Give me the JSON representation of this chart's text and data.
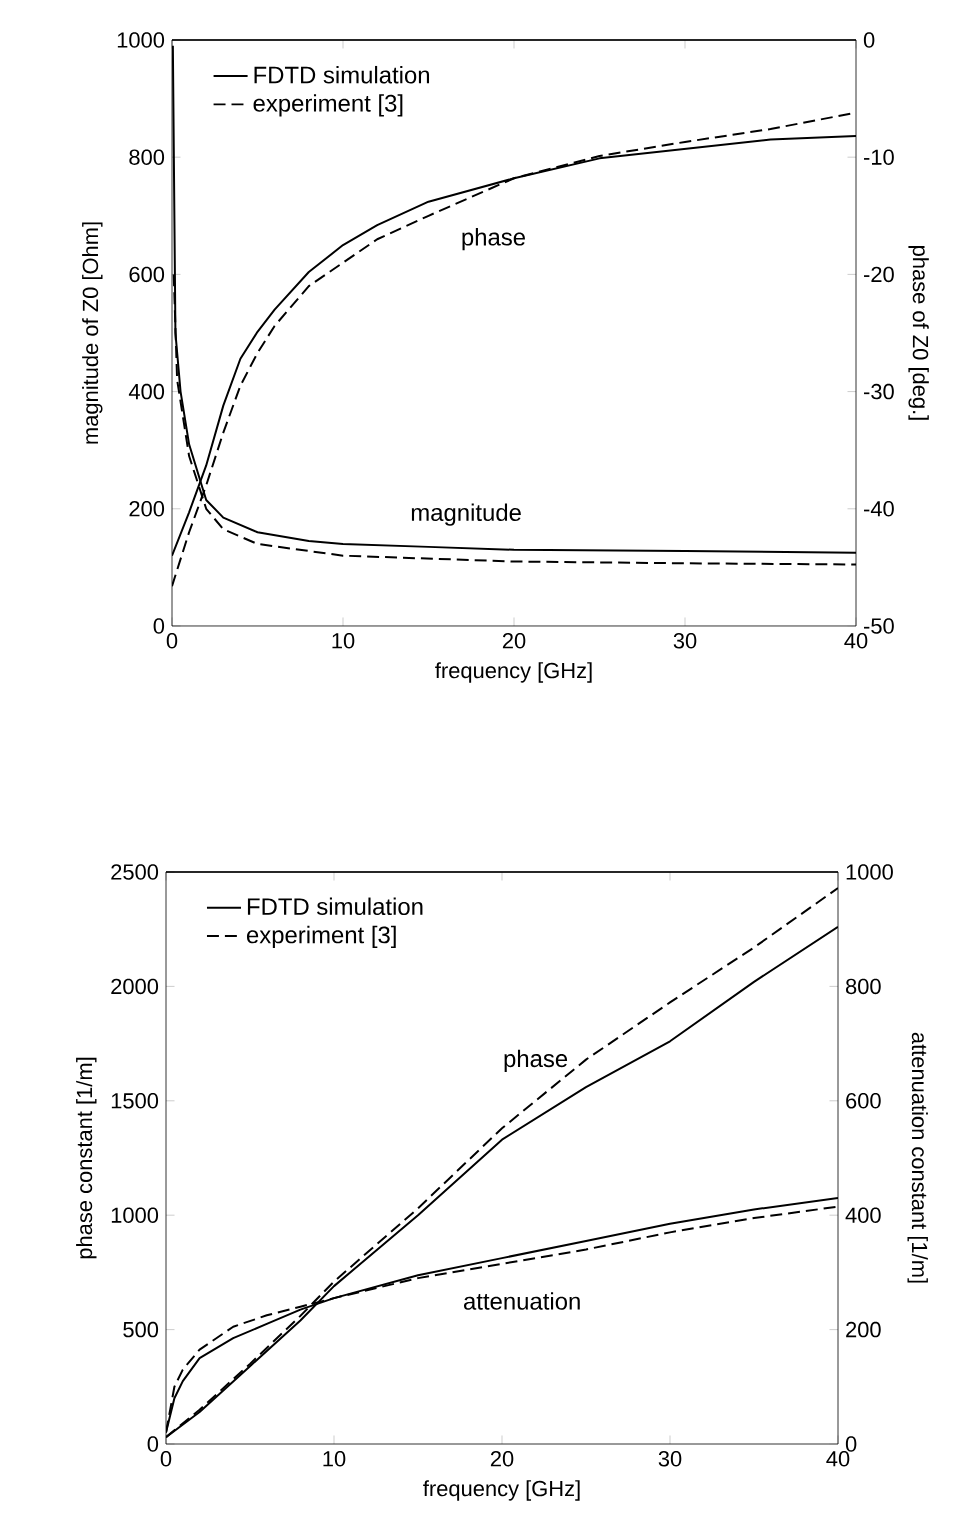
{
  "chart_data": [
    {
      "type": "line",
      "xlabel": "frequency [GHz]",
      "ylabel": "magnitude of Z0 [Ohm]",
      "y2label": "phase of  Z0 [deg.]",
      "xlim": [
        0,
        40
      ],
      "ylim": [
        0,
        1000
      ],
      "y2lim": [
        -50,
        0
      ],
      "xticks": [
        0,
        10,
        20,
        30,
        40
      ],
      "yticks": [
        0,
        200,
        400,
        600,
        800,
        1000
      ],
      "y2ticks": [
        -50,
        -40,
        -30,
        -20,
        -10,
        0
      ],
      "legend": "top left",
      "grid": false,
      "series": [
        {
          "name": "FDTD simulation",
          "color": "#000000",
          "line_style": "solid",
          "x": [
            0.05,
            0.2,
            0.5,
            1,
            2,
            3,
            5,
            8,
            10,
            15,
            20,
            30,
            40
          ],
          "values": [
            990,
            500,
            400,
            310,
            215,
            185,
            160,
            145,
            140,
            135,
            130,
            128,
            125
          ]
        },
        {
          "name": "experiment [3]",
          "color": "#000000",
          "line_style": "dashed",
          "x": [
            0.1,
            0.3,
            1,
            2,
            3,
            5,
            10,
            20,
            30,
            40
          ],
          "values": [
            600,
            420,
            290,
            200,
            165,
            140,
            120,
            110,
            107,
            105
          ]
        },
        {
          "color": "#000000",
          "line_style": "solid",
          "axis": "y2",
          "x": [
            0,
            1,
            2,
            3,
            4,
            5,
            6,
            8,
            10,
            12,
            15,
            20,
            25,
            30,
            35,
            40
          ],
          "values": [
            -44,
            -40.3,
            -36.3,
            -31.2,
            -27.2,
            -24.9,
            -23,
            -19.8,
            -17.5,
            -15.8,
            -13.8,
            -11.8,
            -10.1,
            -9.3,
            -8.5,
            -8.2
          ]
        },
        {
          "color": "#000000",
          "line_style": "dashed",
          "axis": "y2",
          "x": [
            0,
            1,
            2,
            3,
            4,
            5,
            6,
            8,
            10,
            12,
            15,
            20,
            25,
            30,
            35,
            40
          ],
          "values": [
            -46.6,
            -42,
            -38,
            -33.5,
            -29.5,
            -26.7,
            -24.4,
            -21,
            -19,
            -17,
            -15,
            -11.8,
            -9.9,
            -8.7,
            -7.6,
            -6.2
          ]
        }
      ],
      "annotations": [
        "phase",
        "magnitude"
      ]
    },
    {
      "type": "line",
      "xlabel": "frequency [GHz]",
      "ylabel": "phase constant [1/m]",
      "y2label": "attenuation constant [1/m]",
      "xlim": [
        0,
        40
      ],
      "ylim": [
        0,
        2500
      ],
      "y2lim": [
        0,
        1000
      ],
      "xticks": [
        0,
        10,
        20,
        30,
        40
      ],
      "yticks": [
        0,
        500,
        1000,
        1500,
        2000,
        2500
      ],
      "y2ticks": [
        0,
        200,
        400,
        600,
        800,
        1000
      ],
      "legend": "top left",
      "grid": false,
      "series": [
        {
          "name": "FDTD simulation",
          "color": "#000000",
          "line_style": "solid",
          "x": [
            0,
            2,
            5,
            8,
            10,
            15,
            20,
            25,
            30,
            35,
            40
          ],
          "values": [
            30,
            140,
            340,
            540,
            690,
            1000,
            1330,
            1560,
            1760,
            2020,
            2260
          ]
        },
        {
          "name": "experiment [3]",
          "color": "#000000",
          "line_style": "dashed",
          "x": [
            0,
            2,
            5,
            8,
            10,
            15,
            20,
            25,
            30,
            35,
            40
          ],
          "values": [
            30,
            150,
            350,
            560,
            710,
            1030,
            1380,
            1680,
            1930,
            2170,
            2430
          ]
        },
        {
          "color": "#000000",
          "line_style": "solid",
          "axis": "y2",
          "x": [
            0,
            0.5,
            1,
            2,
            4,
            6,
            8,
            10,
            15,
            20,
            25,
            30,
            35,
            40
          ],
          "values": [
            20,
            80,
            110,
            150,
            185,
            210,
            235,
            255,
            295,
            325,
            355,
            385,
            410,
            430
          ]
        },
        {
          "color": "#000000",
          "line_style": "dashed",
          "axis": "y2",
          "x": [
            0,
            0.5,
            1,
            2,
            4,
            6,
            8,
            10,
            15,
            20,
            25,
            30,
            35,
            40
          ],
          "values": [
            20,
            100,
            130,
            165,
            205,
            225,
            240,
            255,
            290,
            315,
            340,
            370,
            395,
            415
          ]
        }
      ],
      "annotations": [
        "phase",
        "attenuation"
      ]
    }
  ]
}
